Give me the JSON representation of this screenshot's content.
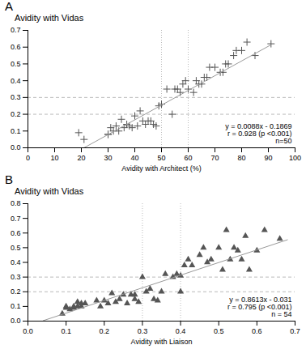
{
  "chart_data": [
    {
      "type": "scatter",
      "title": "A",
      "subtitle": "Avidity with Vidas",
      "xlabel": "Avidity with Architect (%)",
      "annotation": "y = 0.0088x - 0.1869\nr = 0.928 (p <0.001)\nn=50",
      "series": [
        {
          "type": "scatter",
          "marker": "plus",
          "color": "#555555",
          "x": [
            19,
            21,
            30,
            30,
            31,
            32,
            33,
            34,
            35,
            36,
            37,
            38,
            39,
            40,
            41,
            42,
            43,
            44,
            45,
            46,
            47,
            48,
            49,
            50,
            52,
            54,
            55,
            56,
            57,
            58,
            59,
            60,
            62,
            63,
            64,
            65,
            66,
            67,
            68,
            70,
            72,
            73,
            74,
            75,
            77,
            78,
            80,
            82,
            85,
            91
          ],
          "values": [
            0.09,
            0.05,
            0.08,
            0.08,
            0.12,
            0.1,
            0.13,
            0.1,
            0.17,
            0.12,
            0.14,
            0.13,
            0.12,
            0.19,
            0.13,
            0.22,
            0.16,
            0.14,
            0.16,
            0.16,
            0.14,
            0.13,
            0.25,
            0.26,
            0.35,
            0.2,
            0.35,
            0.35,
            0.33,
            0.38,
            0.4,
            0.35,
            0.33,
            0.4,
            0.38,
            0.38,
            0.42,
            0.42,
            0.48,
            0.48,
            0.45,
            0.45,
            0.5,
            0.5,
            0.55,
            0.58,
            0.58,
            0.63,
            0.55,
            0.62
          ]
        },
        {
          "type": "line",
          "color": "#999999",
          "x": [
            21,
            91
          ],
          "values": [
            0.0,
            0.614
          ]
        }
      ],
      "hlines": {
        "values": [
          0.2,
          0.3
        ],
        "color": "#aaaaaa",
        "line_style": "dashed"
      },
      "vlines": {
        "values": [
          50,
          60
        ],
        "color": "#aaaaaa",
        "line_style": "dotted"
      },
      "xlim": [
        0,
        100
      ],
      "ylim": [
        0,
        0.7
      ],
      "xticks": [
        0,
        10,
        20,
        30,
        40,
        50,
        60,
        70,
        80,
        90,
        100
      ],
      "yticks": [
        {
          "value": 0,
          "label": "0.0"
        },
        0.1,
        0.2,
        0.3,
        0.4,
        0.5,
        0.6,
        0.7
      ]
    },
    {
      "type": "scatter",
      "title": "B",
      "subtitle": "Avidity with Vidas",
      "xlabel": "Avidity with Liaison",
      "annotation": "y = 0.8613x - 0.031\nr = 0.795 (p <0.001)\nn = 54",
      "series": [
        {
          "type": "scatter",
          "marker": "triangle",
          "color": "#555555",
          "x": [
            0.09,
            0.1,
            0.1,
            0.11,
            0.12,
            0.12,
            0.13,
            0.13,
            0.14,
            0.14,
            0.15,
            0.18,
            0.19,
            0.2,
            0.21,
            0.22,
            0.23,
            0.24,
            0.25,
            0.26,
            0.27,
            0.28,
            0.28,
            0.29,
            0.3,
            0.31,
            0.32,
            0.33,
            0.34,
            0.35,
            0.36,
            0.38,
            0.39,
            0.4,
            0.4,
            0.41,
            0.42,
            0.43,
            0.45,
            0.46,
            0.47,
            0.48,
            0.5,
            0.51,
            0.52,
            0.53,
            0.54,
            0.55,
            0.56,
            0.57,
            0.58,
            0.6,
            0.62,
            0.66
          ],
          "values": [
            0.05,
            0.09,
            0.1,
            0.08,
            0.09,
            0.1,
            0.1,
            0.13,
            0.1,
            0.12,
            0.12,
            0.14,
            0.1,
            0.14,
            0.12,
            0.19,
            0.13,
            0.15,
            0.18,
            0.12,
            0.18,
            0.18,
            0.15,
            0.13,
            0.3,
            0.2,
            0.22,
            0.15,
            0.14,
            0.2,
            0.32,
            0.3,
            0.32,
            0.2,
            0.31,
            0.38,
            0.42,
            0.38,
            0.45,
            0.5,
            0.4,
            0.42,
            0.5,
            0.35,
            0.62,
            0.42,
            0.5,
            0.48,
            0.42,
            0.58,
            0.35,
            0.48,
            0.62,
            0.56
          ]
        },
        {
          "type": "line",
          "color": "#999999",
          "x": [
            0.04,
            0.68
          ],
          "values": [
            0.003,
            0.554
          ]
        }
      ],
      "hlines": {
        "values": [
          0.2,
          0.3
        ],
        "color": "#aaaaaa",
        "line_style": "dashed"
      },
      "vlines": {
        "values": [
          0.3,
          0.4
        ],
        "color": "#aaaaaa",
        "line_style": "dotted"
      },
      "xlim": [
        0,
        0.7
      ],
      "ylim": [
        0,
        0.8
      ],
      "xticks": [
        {
          "value": 0,
          "label": "0.0"
        },
        0.1,
        0.2,
        0.3,
        0.4,
        0.5,
        0.6,
        0.7
      ],
      "yticks": [
        {
          "value": 0,
          "label": "0.0"
        },
        0.1,
        0.2,
        0.3,
        0.4,
        0.5,
        0.6,
        0.7,
        0.8
      ]
    }
  ]
}
